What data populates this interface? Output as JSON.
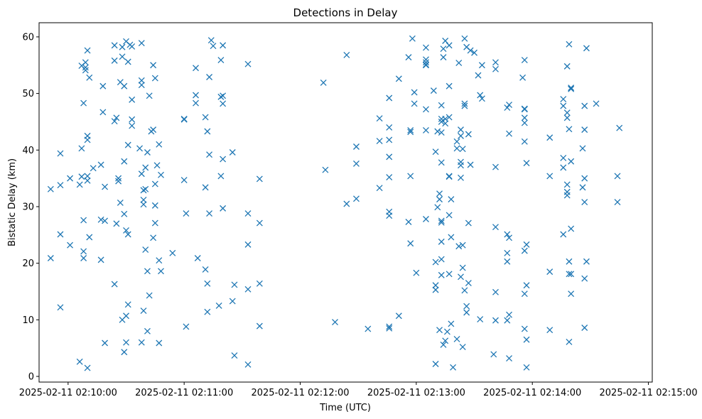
{
  "chart_data": {
    "type": "scatter",
    "title": "Detections in Delay",
    "xlabel": "Time (UTC)",
    "ylabel": "Bistatic Delay (km)",
    "marker": "x",
    "color": "#1f77b4",
    "xlim_seconds": [
      -15,
      302
    ],
    "ylim": [
      -1,
      62.5
    ],
    "x_reference": "2025-02-11 02:10:00",
    "x_ticks": [
      {
        "seconds": 0,
        "label": "2025-02-11 02:10:00"
      },
      {
        "seconds": 60,
        "label": "2025-02-11 02:11:00"
      },
      {
        "seconds": 120,
        "label": "2025-02-11 02:12:00"
      },
      {
        "seconds": 180,
        "label": "2025-02-11 02:13:00"
      },
      {
        "seconds": 240,
        "label": "2025-02-11 02:14:00"
      },
      {
        "seconds": 300,
        "label": "2025-02-11 02:15:00"
      }
    ],
    "y_ticks": [
      {
        "value": 0,
        "label": "0"
      },
      {
        "value": 10,
        "label": "10"
      },
      {
        "value": 20,
        "label": "20"
      },
      {
        "value": 30,
        "label": "30"
      },
      {
        "value": 40,
        "label": "40"
      },
      {
        "value": 50,
        "label": "50"
      },
      {
        "value": 60,
        "label": "60"
      }
    ],
    "points": [
      [
        -9,
        33.1
      ],
      [
        -9,
        20.9
      ],
      [
        -4,
        33.8
      ],
      [
        -4,
        25.1
      ],
      [
        -4,
        12.2
      ],
      [
        -4,
        39.4
      ],
      [
        1,
        35
      ],
      [
        1,
        23.2
      ],
      [
        6,
        33.9
      ],
      [
        7,
        40.3
      ],
      [
        7,
        35.3
      ],
      [
        7,
        54.9
      ],
      [
        6,
        2.6
      ],
      [
        8,
        48.3
      ],
      [
        8,
        27.6
      ],
      [
        8,
        22.1
      ],
      [
        8,
        20.9
      ],
      [
        9,
        54.1
      ],
      [
        9,
        54.6
      ],
      [
        9,
        55.5
      ],
      [
        10,
        57.6
      ],
      [
        10,
        42.5
      ],
      [
        10,
        41.8
      ],
      [
        10,
        35.4
      ],
      [
        10,
        34.6
      ],
      [
        11,
        52.8
      ],
      [
        11,
        24.6
      ],
      [
        10,
        1.5
      ],
      [
        13,
        36.8
      ],
      [
        17,
        37.4
      ],
      [
        17,
        20.6
      ],
      [
        18,
        51.3
      ],
      [
        18,
        46.7
      ],
      [
        17,
        27.7
      ],
      [
        19,
        33.5
      ],
      [
        19,
        27.5
      ],
      [
        19,
        5.9
      ],
      [
        24,
        58.5
      ],
      [
        24,
        55.8
      ],
      [
        24,
        45.1
      ],
      [
        24,
        16.3
      ],
      [
        25,
        45.7
      ],
      [
        25,
        27
      ],
      [
        26,
        35
      ],
      [
        26,
        34.5
      ],
      [
        27,
        52
      ],
      [
        27,
        30.7
      ],
      [
        28,
        58.2
      ],
      [
        28,
        56.5
      ],
      [
        28,
        10
      ],
      [
        29,
        51.3
      ],
      [
        29,
        38
      ],
      [
        29,
        28.7
      ],
      [
        29,
        4.3
      ],
      [
        30,
        59.2
      ],
      [
        30,
        25.8
      ],
      [
        30,
        10.7
      ],
      [
        30,
        6
      ],
      [
        31,
        55.6
      ],
      [
        31,
        40.9
      ],
      [
        31,
        25.1
      ],
      [
        31,
        12.7
      ],
      [
        32,
        58.6
      ],
      [
        33,
        58.3
      ],
      [
        33,
        48.9
      ],
      [
        33,
        45.4
      ],
      [
        33,
        44.3
      ],
      [
        37,
        40.3
      ],
      [
        38,
        6
      ],
      [
        38,
        35.8
      ],
      [
        38,
        58.9
      ],
      [
        38,
        52.3
      ],
      [
        38,
        51.5
      ],
      [
        39,
        11.6
      ],
      [
        39,
        31.2
      ],
      [
        39,
        30.4
      ],
      [
        39,
        32.9
      ],
      [
        40,
        33.1
      ],
      [
        40,
        36.9
      ],
      [
        40,
        22.4
      ],
      [
        41,
        39.6
      ],
      [
        41,
        18.6
      ],
      [
        41,
        8
      ],
      [
        42,
        49.6
      ],
      [
        42,
        14.3
      ],
      [
        43,
        43.3
      ],
      [
        44,
        43.6
      ],
      [
        44,
        24.5
      ],
      [
        44,
        55
      ],
      [
        45,
        52.7
      ],
      [
        45,
        34
      ],
      [
        45,
        30.2
      ],
      [
        45,
        27.1
      ],
      [
        46,
        37.3
      ],
      [
        47,
        41
      ],
      [
        47,
        20.5
      ],
      [
        47,
        5.9
      ],
      [
        48,
        35.6
      ],
      [
        48,
        18.6
      ],
      [
        54,
        21.8
      ],
      [
        60,
        45.4
      ],
      [
        60,
        45.5
      ],
      [
        60,
        34.7
      ],
      [
        61,
        28.8
      ],
      [
        61,
        8.8
      ],
      [
        66,
        54.5
      ],
      [
        66,
        49.7
      ],
      [
        66,
        48.3
      ],
      [
        67,
        20.9
      ],
      [
        71,
        33.4
      ],
      [
        71,
        18.9
      ],
      [
        71,
        45.8
      ],
      [
        72,
        43.3
      ],
      [
        72,
        11.4
      ],
      [
        72,
        16.4
      ],
      [
        73,
        52.9
      ],
      [
        73,
        39.2
      ],
      [
        73,
        28.8
      ],
      [
        74,
        59.4
      ],
      [
        75,
        58.4
      ],
      [
        78,
        12.5
      ],
      [
        79,
        49.4
      ],
      [
        79,
        55.9
      ],
      [
        80,
        49.6
      ],
      [
        80,
        58.5
      ],
      [
        80,
        48.2
      ],
      [
        80,
        38.4
      ],
      [
        79,
        35.4
      ],
      [
        80,
        29.7
      ],
      [
        85,
        39.6
      ],
      [
        85,
        13.3
      ],
      [
        86,
        16.2
      ],
      [
        86,
        3.7
      ],
      [
        93,
        15.4
      ],
      [
        93,
        23.3
      ],
      [
        93,
        28.8
      ],
      [
        93,
        55.2
      ],
      [
        93,
        2.1
      ],
      [
        99,
        34.9
      ],
      [
        99,
        27.1
      ],
      [
        99,
        16.4
      ],
      [
        99,
        8.9
      ],
      [
        132,
        51.9
      ],
      [
        133,
        36.5
      ],
      [
        138,
        9.6
      ],
      [
        144,
        30.5
      ],
      [
        144,
        56.8
      ],
      [
        149,
        40.6
      ],
      [
        149,
        37.6
      ],
      [
        149,
        31.4
      ],
      [
        155,
        8.4
      ],
      [
        161,
        45.6
      ],
      [
        161,
        41.6
      ],
      [
        161,
        33.3
      ],
      [
        166,
        49.2
      ],
      [
        166,
        44
      ],
      [
        166,
        41.8
      ],
      [
        166,
        38.8
      ],
      [
        166,
        35.2
      ],
      [
        166,
        29.1
      ],
      [
        166,
        28.4
      ],
      [
        166,
        8.8
      ],
      [
        166,
        8.5
      ],
      [
        171,
        52.6
      ],
      [
        171,
        10.7
      ],
      [
        176,
        56.4
      ],
      [
        176,
        27.3
      ],
      [
        177,
        43.5
      ],
      [
        177,
        43.2
      ],
      [
        177,
        35.4
      ],
      [
        177,
        23.5
      ],
      [
        178,
        59.7
      ],
      [
        179,
        48.2
      ],
      [
        179,
        50.2
      ],
      [
        180,
        18.3
      ],
      [
        185,
        58.1
      ],
      [
        185,
        56
      ],
      [
        185,
        55.5
      ],
      [
        185,
        55.1
      ],
      [
        185,
        55
      ],
      [
        185,
        47.2
      ],
      [
        185,
        43.5
      ],
      [
        185,
        27.8
      ],
      [
        189,
        50.5
      ],
      [
        190,
        39.7
      ],
      [
        190,
        20.2
      ],
      [
        190,
        16.1
      ],
      [
        190,
        15.3
      ],
      [
        190,
        2.2
      ],
      [
        191,
        43.3
      ],
      [
        191,
        29.9
      ],
      [
        192,
        31.3
      ],
      [
        192,
        32.3
      ],
      [
        193,
        47.9
      ],
      [
        193,
        45.5
      ],
      [
        193,
        45
      ],
      [
        193,
        43.1
      ],
      [
        193,
        37.8
      ],
      [
        193,
        27.2
      ],
      [
        193,
        23.8
      ],
      [
        193,
        17.9
      ],
      [
        193,
        27.5
      ],
      [
        193,
        20.7
      ],
      [
        192,
        8.2
      ],
      [
        194,
        56.4
      ],
      [
        194,
        57.9
      ],
      [
        194,
        5.6
      ],
      [
        195,
        59.3
      ],
      [
        195,
        45.5
      ],
      [
        195,
        44.7
      ],
      [
        195,
        6.3
      ],
      [
        196,
        7.9
      ],
      [
        197,
        58.5
      ],
      [
        197,
        51.3
      ],
      [
        197,
        45.8
      ],
      [
        197,
        35.3
      ],
      [
        197,
        35.4
      ],
      [
        197,
        28.5
      ],
      [
        197,
        18.1
      ],
      [
        198,
        24.6
      ],
      [
        198,
        31.3
      ],
      [
        198,
        9.3
      ],
      [
        199,
        1.6
      ],
      [
        201,
        41.5
      ],
      [
        201,
        40.3
      ],
      [
        201,
        6.6
      ],
      [
        202,
        55.4
      ],
      [
        202,
        23
      ],
      [
        203,
        43.6
      ],
      [
        203,
        42.5
      ],
      [
        203,
        37.9
      ],
      [
        203,
        37.3
      ],
      [
        203,
        35.1
      ],
      [
        203,
        17.6
      ],
      [
        204,
        40.2
      ],
      [
        204,
        23.2
      ],
      [
        204,
        5.2
      ],
      [
        204,
        19.2
      ],
      [
        205,
        59.7
      ],
      [
        205,
        48.2
      ],
      [
        205,
        47.8
      ],
      [
        205,
        15.2
      ],
      [
        206,
        12.4
      ],
      [
        206,
        11.3
      ],
      [
        206,
        58.2
      ],
      [
        207,
        27.1
      ],
      [
        207,
        16.5
      ],
      [
        207,
        42.8
      ],
      [
        208,
        37.4
      ],
      [
        208,
        57.6
      ],
      [
        210,
        57.2
      ],
      [
        212,
        53.2
      ],
      [
        213,
        49.7
      ],
      [
        214,
        49.1
      ],
      [
        214,
        55
      ],
      [
        213,
        10.1
      ],
      [
        220,
        3.9
      ],
      [
        221,
        55.5
      ],
      [
        221,
        54.3
      ],
      [
        221,
        37
      ],
      [
        221,
        26.4
      ],
      [
        221,
        14.9
      ],
      [
        221,
        9.9
      ],
      [
        227,
        47.5
      ],
      [
        227,
        21.8
      ],
      [
        227,
        20.3
      ],
      [
        227,
        25.1
      ],
      [
        227,
        9.9
      ],
      [
        228,
        48
      ],
      [
        228,
        42.9
      ],
      [
        228,
        24.5
      ],
      [
        228,
        10.9
      ],
      [
        228,
        3.2
      ],
      [
        235,
        52.8
      ],
      [
        236,
        47.3
      ],
      [
        236,
        47.2
      ],
      [
        236,
        45.7
      ],
      [
        236,
        44.8
      ],
      [
        236,
        41.5
      ],
      [
        236,
        22.2
      ],
      [
        236,
        14.6
      ],
      [
        236,
        8.4
      ],
      [
        236,
        55.9
      ],
      [
        237,
        37.7
      ],
      [
        237,
        23.3
      ],
      [
        237,
        16.1
      ],
      [
        237,
        6.5
      ],
      [
        237,
        1.6
      ],
      [
        249,
        42.2
      ],
      [
        249,
        35.4
      ],
      [
        249,
        18.5
      ],
      [
        249,
        8.2
      ],
      [
        256,
        49
      ],
      [
        256,
        47.8
      ],
      [
        256,
        38.6
      ],
      [
        256,
        36.9
      ],
      [
        256,
        25.1
      ],
      [
        258,
        54.8
      ],
      [
        258,
        46.6
      ],
      [
        258,
        45.7
      ],
      [
        258,
        33.9
      ],
      [
        258,
        32.6
      ],
      [
        258,
        32
      ],
      [
        259,
        58.7
      ],
      [
        259,
        43.7
      ],
      [
        259,
        20.3
      ],
      [
        259,
        18.1
      ],
      [
        259,
        6.1
      ],
      [
        260,
        51
      ],
      [
        260,
        50.8
      ],
      [
        260,
        38
      ],
      [
        260,
        26.1
      ],
      [
        260,
        18.1
      ],
      [
        260,
        14.6
      ],
      [
        266,
        40.3
      ],
      [
        266,
        33.4
      ],
      [
        267,
        17.3
      ],
      [
        267,
        47.8
      ],
      [
        267,
        43.6
      ],
      [
        267,
        35
      ],
      [
        267,
        30.8
      ],
      [
        267,
        8.6
      ],
      [
        268,
        58
      ],
      [
        268,
        20.3
      ],
      [
        273,
        48.2
      ],
      [
        285,
        43.9
      ],
      [
        284,
        35.4
      ],
      [
        284,
        30.8
      ]
    ]
  }
}
